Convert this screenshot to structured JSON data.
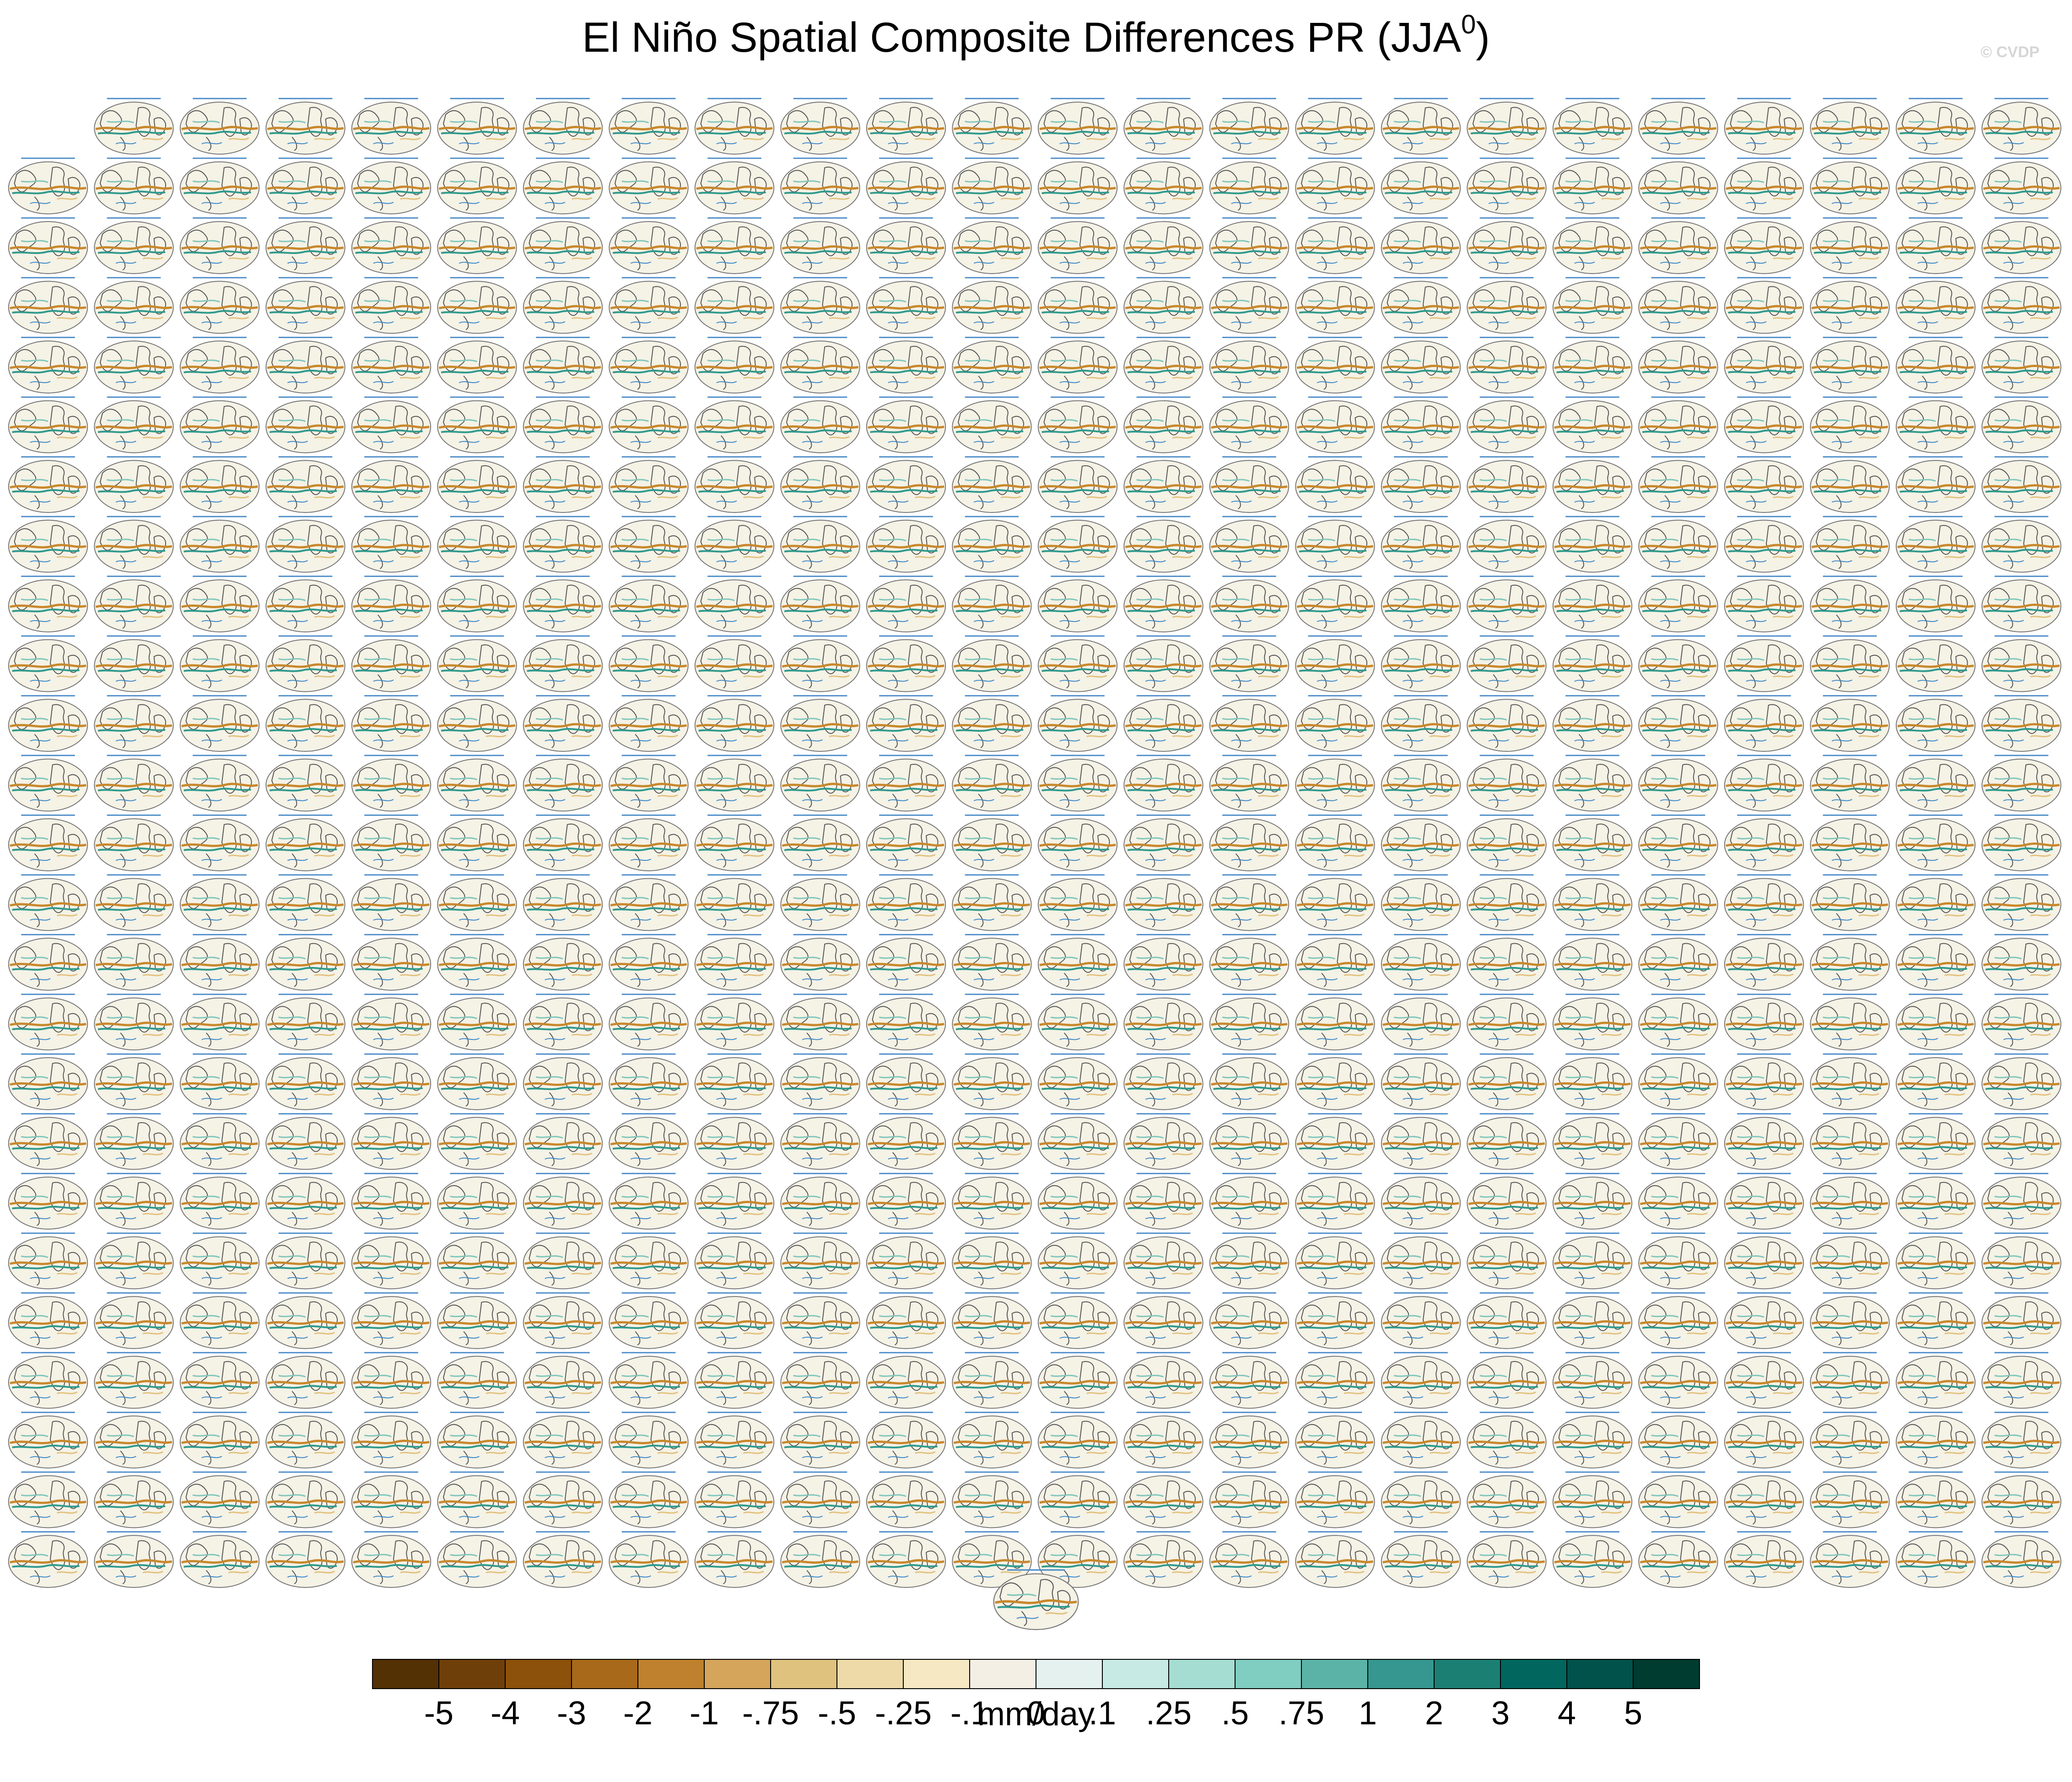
{
  "title": {
    "main": "El Niño Spatial Composite Differences PR (JJA",
    "superscript": "0",
    "close": ")"
  },
  "watermark": "© CVDP",
  "chart_data": {
    "type": "heatmap",
    "description_panels": {
      "rows": 25,
      "cols": 24,
      "first_row_cols": 23,
      "extra_bottom_panel": true
    },
    "colorbar": {
      "unit": "mm/day",
      "levels": [
        "-5",
        "-4",
        "-3",
        "-2",
        "-1",
        "-.75",
        "-.5",
        "-.25",
        "-.1",
        "0",
        ".1",
        ".25",
        ".5",
        ".75",
        "1",
        "2",
        "3",
        "4",
        "5"
      ],
      "colors": [
        "#543005",
        "#6f3f09",
        "#8c510a",
        "#a8691a",
        "#bf812d",
        "#d4a55b",
        "#dfc27d",
        "#eed9a8",
        "#f6e8c3",
        "#f3efe4",
        "#e4f1ee",
        "#c7eae5",
        "#a6ddd3",
        "#80cdc1",
        "#5bb3a8",
        "#35978f",
        "#1c7f73",
        "#01665e",
        "#01524a",
        "#003c30"
      ]
    }
  },
  "colors": {
    "land_outline": "#4a4a4a",
    "ocean_fill": "#f4f1e6",
    "panel_title": "#4c8cc9"
  }
}
